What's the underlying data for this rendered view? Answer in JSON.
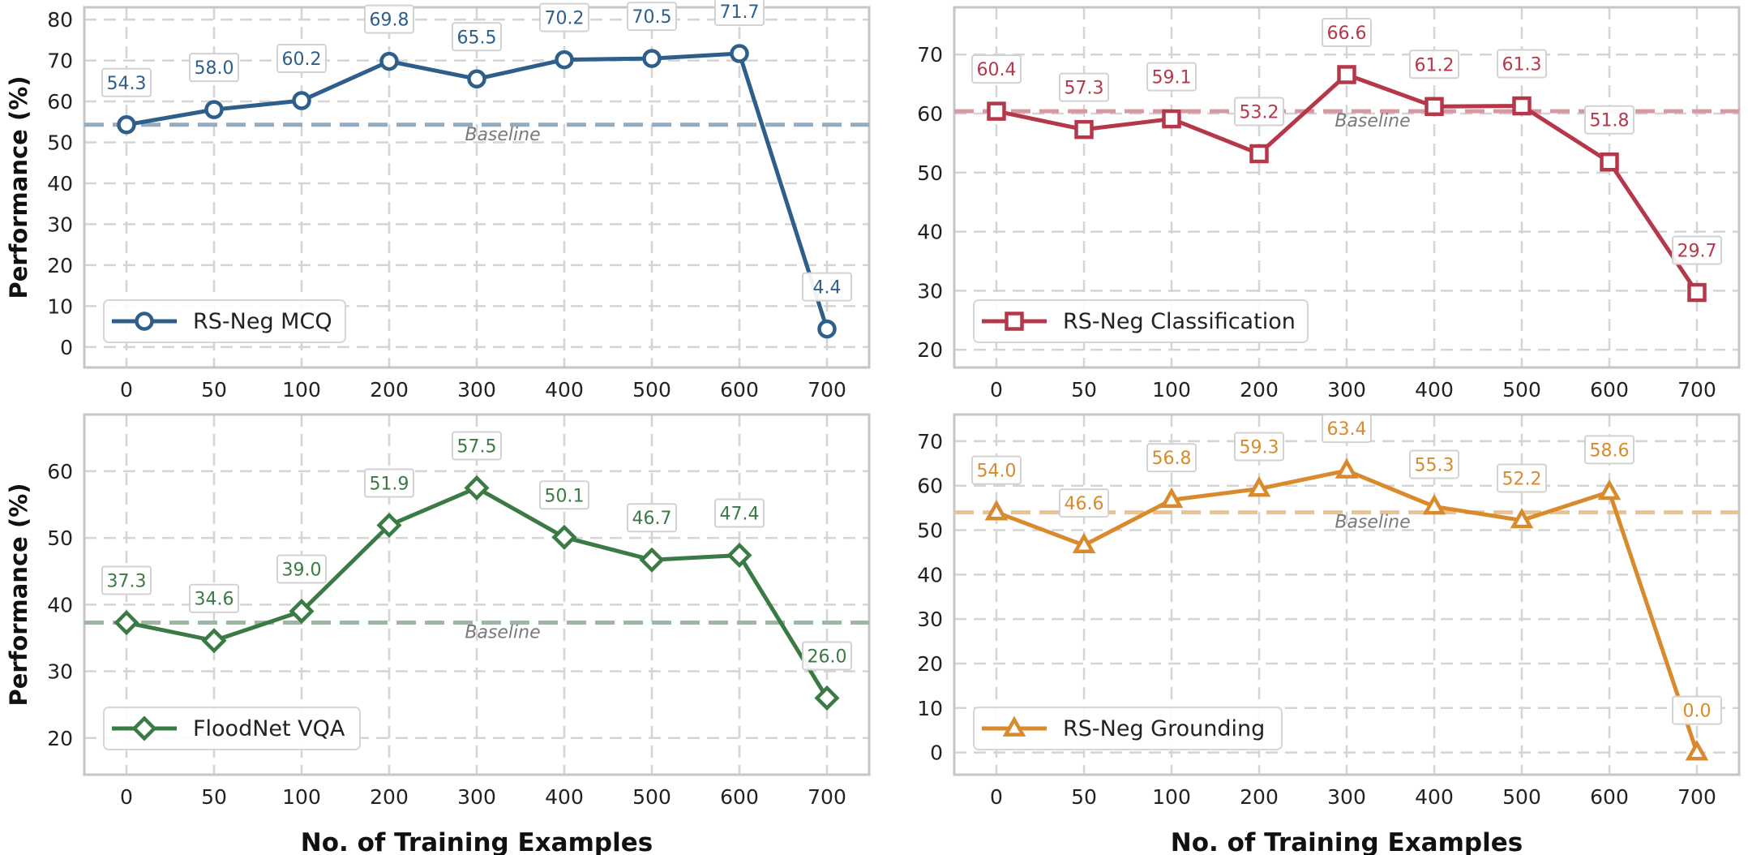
{
  "figure": {
    "ylabel": "Performance (%)",
    "xlabel": "No. of Training Examples",
    "baseline_label": "Baseline"
  },
  "chart_data": [
    {
      "type": "line",
      "categories": [
        "0",
        "50",
        "100",
        "200",
        "300",
        "400",
        "500",
        "600",
        "700"
      ],
      "series": [
        {
          "name": "RS-Neg MCQ",
          "values": [
            54.3,
            58.0,
            60.2,
            69.8,
            65.5,
            70.2,
            70.5,
            71.7,
            4.4
          ],
          "color": "#2e5f8a",
          "marker": "circle"
        }
      ],
      "baseline": 54.3,
      "ylim": [
        -5,
        83
      ],
      "yticks": [
        0,
        10,
        20,
        30,
        40,
        50,
        60,
        70,
        80
      ],
      "ylabel": "Performance (%)",
      "xlabel": "",
      "grid": true,
      "legend": "lower-left"
    },
    {
      "type": "line",
      "categories": [
        "0",
        "50",
        "100",
        "200",
        "300",
        "400",
        "500",
        "600",
        "700"
      ],
      "series": [
        {
          "name": "RS-Neg Classification",
          "values": [
            60.4,
            57.3,
            59.1,
            53.2,
            66.6,
            61.2,
            61.3,
            51.8,
            29.7
          ],
          "color": "#b5384a",
          "marker": "square"
        }
      ],
      "baseline": 60.4,
      "ylim": [
        17,
        78
      ],
      "yticks": [
        20,
        30,
        40,
        50,
        60,
        70
      ],
      "ylabel": "",
      "xlabel": "",
      "grid": true,
      "legend": "lower-left"
    },
    {
      "type": "line",
      "categories": [
        "0",
        "50",
        "100",
        "200",
        "300",
        "400",
        "500",
        "600",
        "700"
      ],
      "series": [
        {
          "name": "FloodNet VQA",
          "values": [
            37.3,
            34.6,
            39.0,
            51.9,
            57.5,
            50.1,
            46.7,
            47.4,
            26.0
          ],
          "color": "#3a7a44",
          "marker": "diamond"
        }
      ],
      "baseline": 37.3,
      "ylim": [
        14.5,
        68.5
      ],
      "yticks": [
        20,
        30,
        40,
        50,
        60
      ],
      "ylabel": "Performance (%)",
      "xlabel": "No. of Training Examples",
      "grid": true,
      "legend": "lower-left"
    },
    {
      "type": "line",
      "categories": [
        "0",
        "50",
        "100",
        "200",
        "300",
        "400",
        "500",
        "600",
        "700"
      ],
      "series": [
        {
          "name": "RS-Neg Grounding",
          "values": [
            54.0,
            46.6,
            56.8,
            59.3,
            63.4,
            55.3,
            52.2,
            58.6,
            0.0
          ],
          "color": "#d98a2c",
          "marker": "triangle"
        }
      ],
      "baseline": 54.0,
      "ylim": [
        -5,
        76
      ],
      "yticks": [
        0,
        10,
        20,
        30,
        40,
        50,
        60,
        70
      ],
      "ylabel": "",
      "xlabel": "No. of Training Examples",
      "grid": true,
      "legend": "lower-left"
    }
  ]
}
